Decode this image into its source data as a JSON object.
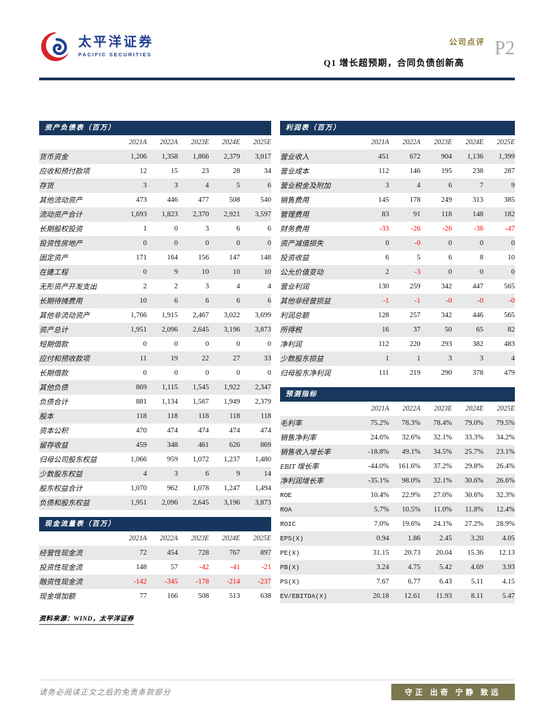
{
  "header": {
    "logo_cn": "太平洋证券",
    "logo_en": "PACIFIC SECURITIES",
    "category": "公司点评",
    "page_no": "P2",
    "title": "Q1 增长超预期，合同负债创新高"
  },
  "colors": {
    "navy": "#17365D",
    "negative": "#FE0000",
    "stripe": "#E8E8E8",
    "brand_blue": "#1F3E92",
    "brand_red": "#D7232A",
    "gold": "#8E7D33",
    "olive": "#7C784E"
  },
  "tables": {
    "balance_sheet": {
      "title": "资产负债表（百万）",
      "columns": [
        "2021A",
        "2022A",
        "2023E",
        "2024E",
        "2025E"
      ],
      "negatives_red": true,
      "rows": [
        {
          "label": "货币资金",
          "values": [
            "1,206",
            "1,358",
            "1,866",
            "2,379",
            "3,017"
          ]
        },
        {
          "label": "应收和预付款项",
          "values": [
            "12",
            "15",
            "23",
            "28",
            "34"
          ]
        },
        {
          "label": "存货",
          "values": [
            "3",
            "3",
            "4",
            "5",
            "6"
          ]
        },
        {
          "label": "其他流动资产",
          "values": [
            "473",
            "446",
            "477",
            "508",
            "540"
          ]
        },
        {
          "label": "流动资产合计",
          "values": [
            "1,693",
            "1,823",
            "2,370",
            "2,921",
            "3,597"
          ]
        },
        {
          "label": "长期股权投资",
          "values": [
            "1",
            "0",
            "3",
            "6",
            "6"
          ]
        },
        {
          "label": "投资性房地产",
          "values": [
            "0",
            "0",
            "0",
            "0",
            "0"
          ]
        },
        {
          "label": "固定资产",
          "values": [
            "171",
            "164",
            "156",
            "147",
            "148"
          ]
        },
        {
          "label": "在建工程",
          "values": [
            "0",
            "9",
            "10",
            "10",
            "10"
          ]
        },
        {
          "label": "无形资产开发支出",
          "values": [
            "2",
            "2",
            "3",
            "4",
            "4"
          ]
        },
        {
          "label": "长期待摊费用",
          "values": [
            "10",
            "6",
            "6",
            "6",
            "6"
          ]
        },
        {
          "label": "其他非流动资产",
          "values": [
            "1,766",
            "1,915",
            "2,467",
            "3,022",
            "3,699"
          ]
        },
        {
          "label": "资产总计",
          "values": [
            "1,951",
            "2,096",
            "2,645",
            "3,196",
            "3,873"
          ]
        },
        {
          "label": "短期借款",
          "values": [
            "0",
            "0",
            "0",
            "0",
            "0"
          ]
        },
        {
          "label": "应付和预收款项",
          "values": [
            "11",
            "19",
            "22",
            "27",
            "33"
          ]
        },
        {
          "label": "长期借款",
          "values": [
            "0",
            "0",
            "0",
            "0",
            "0"
          ]
        },
        {
          "label": "其他负债",
          "values": [
            "869",
            "1,115",
            "1,545",
            "1,922",
            "2,347"
          ]
        },
        {
          "label": "负债合计",
          "values": [
            "881",
            "1,134",
            "1,567",
            "1,949",
            "2,379"
          ]
        },
        {
          "label": "股本",
          "values": [
            "118",
            "118",
            "118",
            "118",
            "118"
          ]
        },
        {
          "label": "资本公积",
          "values": [
            "470",
            "474",
            "474",
            "474",
            "474"
          ]
        },
        {
          "label": "留存收益",
          "values": [
            "459",
            "348",
            "461",
            "626",
            "869"
          ]
        },
        {
          "label": "归母公司股东权益",
          "values": [
            "1,066",
            "959",
            "1,072",
            "1,237",
            "1,480"
          ]
        },
        {
          "label": "少数股东权益",
          "values": [
            "4",
            "3",
            "6",
            "9",
            "14"
          ]
        },
        {
          "label": "股东权益合计",
          "values": [
            "1,070",
            "962",
            "1,078",
            "1,247",
            "1,494"
          ]
        },
        {
          "label": "负债和股东权益",
          "values": [
            "1,951",
            "2,096",
            "2,645",
            "3,196",
            "3,873"
          ]
        }
      ]
    },
    "cash_flow": {
      "title": "现金流量表（百万）",
      "columns": [
        "2021A",
        "2022A",
        "2023E",
        "2024E",
        "2025E"
      ],
      "negatives_red": true,
      "rows": [
        {
          "label": "经营性现金流",
          "values": [
            "72",
            "454",
            "728",
            "767",
            "897"
          ]
        },
        {
          "label": "投资性现金流",
          "values": [
            "148",
            "57",
            "-42",
            "-41",
            "-21"
          ]
        },
        {
          "label": "融资性现金流",
          "values": [
            "-142",
            "-345",
            "-178",
            "-214",
            "-237"
          ]
        },
        {
          "label": "现金增加额",
          "values": [
            "77",
            "166",
            "508",
            "513",
            "638"
          ]
        }
      ]
    },
    "income_statement": {
      "title": "利润表（百万）",
      "columns": [
        "2021A",
        "2022A",
        "2023E",
        "2024E",
        "2025E"
      ],
      "negatives_red": true,
      "rows": [
        {
          "label": "营业收入",
          "values": [
            "451",
            "672",
            "904",
            "1,136",
            "1,399"
          ]
        },
        {
          "label": "营业成本",
          "values": [
            "112",
            "146",
            "195",
            "238",
            "287"
          ]
        },
        {
          "label": "营业税金及附加",
          "values": [
            "3",
            "4",
            "6",
            "7",
            "9"
          ]
        },
        {
          "label": "销售费用",
          "values": [
            "145",
            "178",
            "249",
            "313",
            "385"
          ]
        },
        {
          "label": "管理费用",
          "values": [
            "83",
            "91",
            "118",
            "148",
            "182"
          ]
        },
        {
          "label": "财务费用",
          "values": [
            "-33",
            "-26",
            "-26",
            "-36",
            "-47"
          ]
        },
        {
          "label": "资产减值损失",
          "values": [
            "0",
            "-0",
            "0",
            "0",
            "0"
          ]
        },
        {
          "label": "投资收益",
          "values": [
            "6",
            "5",
            "6",
            "8",
            "10"
          ]
        },
        {
          "label": "公允价值变动",
          "values": [
            "2",
            "-3",
            "0",
            "0",
            "0"
          ]
        },
        {
          "label": "营业利润",
          "values": [
            "130",
            "259",
            "342",
            "447",
            "565"
          ]
        },
        {
          "label": "其他非经营损益",
          "values": [
            "-1",
            "-1",
            "-0",
            "-0",
            "-0"
          ]
        },
        {
          "label": "利润总额",
          "values": [
            "128",
            "257",
            "342",
            "446",
            "565"
          ]
        },
        {
          "label": "所得税",
          "values": [
            "16",
            "37",
            "50",
            "65",
            "82"
          ]
        },
        {
          "label": "净利润",
          "values": [
            "112",
            "220",
            "293",
            "382",
            "483"
          ]
        },
        {
          "label": "少数股东损益",
          "values": [
            "1",
            "1",
            "3",
            "3",
            "4"
          ]
        },
        {
          "label": "归母股东净利润",
          "values": [
            "111",
            "219",
            "290",
            "378",
            "479"
          ]
        }
      ]
    },
    "forecast": {
      "title": "预测指标",
      "columns": [
        "2021A",
        "2022A",
        "2023E",
        "2024E",
        "2025E"
      ],
      "negatives_red": false,
      "rows": [
        {
          "label": "毛利率",
          "values": [
            "75.2%",
            "78.3%",
            "78.4%",
            "79.0%",
            "79.5%"
          ]
        },
        {
          "label": "销售净利率",
          "values": [
            "24.6%",
            "32.6%",
            "32.1%",
            "33.3%",
            "34.2%"
          ]
        },
        {
          "label": "销售收入增长率",
          "values": [
            "-18.8%",
            "49.1%",
            "34.5%",
            "25.7%",
            "23.1%"
          ]
        },
        {
          "label": "EBIT 增长率",
          "values": [
            "-44.0%",
            "161.6%",
            "37.2%",
            "29.8%",
            "26.4%"
          ]
        },
        {
          "label": "净利润增长率",
          "values": [
            "-35.1%",
            "98.0%",
            "32.1%",
            "30.6%",
            "26.6%"
          ]
        },
        {
          "label": "ROE",
          "values": [
            "10.4%",
            "22.9%",
            "27.0%",
            "30.6%",
            "32.3%"
          ]
        },
        {
          "label": "ROA",
          "values": [
            "5.7%",
            "10.5%",
            "11.0%",
            "11.8%",
            "12.4%"
          ]
        },
        {
          "label": "ROIC",
          "values": [
            "7.0%",
            "19.6%",
            "24.1%",
            "27.2%",
            "28.9%"
          ]
        },
        {
          "label": "EPS(X)",
          "values": [
            "0.94",
            "1.86",
            "2.45",
            "3.20",
            "4.05"
          ]
        },
        {
          "label": "PE(X)",
          "values": [
            "31.15",
            "20.73",
            "20.04",
            "15.36",
            "12.13"
          ]
        },
        {
          "label": "PB(X)",
          "values": [
            "3.24",
            "4.75",
            "5.42",
            "4.69",
            "3.93"
          ]
        },
        {
          "label": "PS(X)",
          "values": [
            "7.67",
            "6.77",
            "6.43",
            "5.11",
            "4.15"
          ]
        },
        {
          "label": "EV/EBITDA(X)",
          "values": [
            "20.18",
            "12.61",
            "11.93",
            "8.11",
            "5.47"
          ]
        }
      ]
    }
  },
  "source_note": "资料来源：WIND，太平洋证券",
  "footer": {
    "disclaimer": "请务必阅读正文之后的免责条款部分",
    "motto": "守正 出奇 宁静 致远"
  }
}
